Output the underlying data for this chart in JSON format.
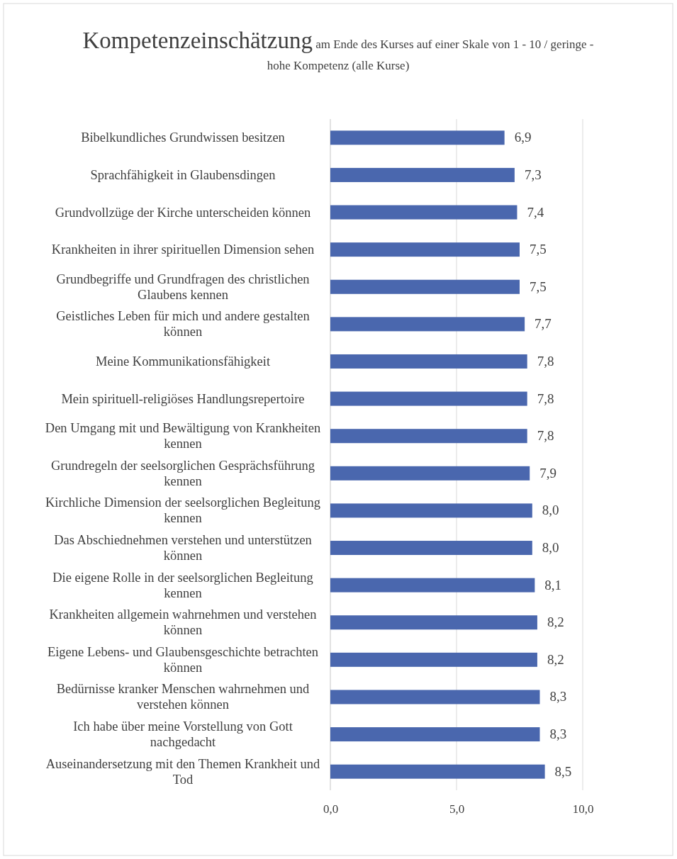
{
  "chart_data": {
    "type": "bar",
    "orientation": "horizontal",
    "title": "Kompetenzeinschätzung",
    "subtitle": "am Ende des Kurses auf einer Skale von 1 - 10 / geringe - hohe Kompetenz (alle Kurse)",
    "categories": [
      "Bibelkundliches Grundwissen besitzen",
      "Sprachfähigkeit in Glaubensdingen",
      "Grundvollzüge der Kirche unterscheiden können",
      "Krankheiten in ihrer spirituellen Dimension sehen",
      "Grundbegriffe und Grundfragen des christlichen Glaubens kennen",
      "Geistliches Leben für mich und andere gestalten können",
      "Meine Kommunikationsfähigkeit",
      "Mein spirituell-religiöses Handlungsrepertoire",
      "Den Umgang mit und Bewältigung von Krankheiten kennen",
      "Grundregeln der seelsorglichen Gesprächsführung kennen",
      "Kirchliche Dimension der seelsorglichen Begleitung kennen",
      "Das Abschiednehmen verstehen und unterstützen können",
      "Die eigene Rolle in der seelsorglichen Begleitung kennen",
      "Krankheiten allgemein wahrnehmen und verstehen können",
      "Eigene Lebens- und Glaubensgeschichte betrachten können",
      "Bedürnisse kranker Menschen wahrnehmen und verstehen können",
      "Ich habe über meine Vorstellung von Gott nachgedacht",
      "Auseinandersetzung mit den Themen Krankheit und Tod"
    ],
    "values": [
      6.9,
      7.3,
      7.4,
      7.5,
      7.5,
      7.7,
      7.8,
      7.8,
      7.8,
      7.9,
      8.0,
      8.0,
      8.1,
      8.2,
      8.2,
      8.3,
      8.3,
      8.5
    ],
    "value_labels": [
      "6,9",
      "7,3",
      "7,4",
      "7,5",
      "7,5",
      "7,7",
      "7,8",
      "7,8",
      "7,8",
      "7,9",
      "8,0",
      "8,0",
      "8,1",
      "8,2",
      "8,2",
      "8,3",
      "8,3",
      "8,5"
    ],
    "color": "#4a67ae",
    "xlim": [
      0,
      10
    ],
    "xticks": [
      {
        "value": 0,
        "label": "0,0"
      },
      {
        "value": 5,
        "label": "5,0"
      },
      {
        "value": 10,
        "label": "10,0"
      }
    ],
    "grid": "x"
  }
}
